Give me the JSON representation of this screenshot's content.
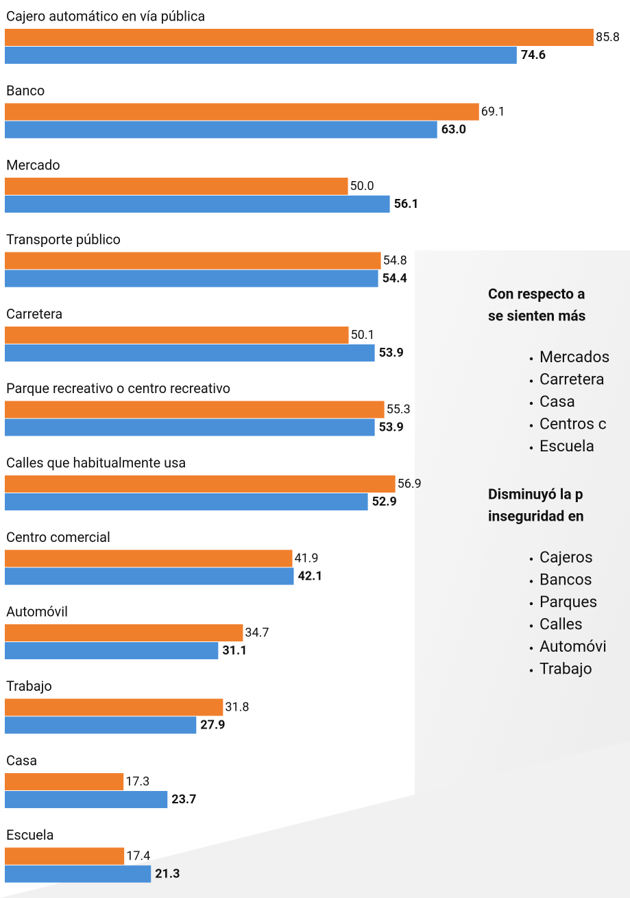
{
  "chart_data": {
    "type": "hbar",
    "categories": [
      "Cajero automático en vía pública",
      "Banco",
      "Mercado",
      "Transporte público",
      "Carretera",
      "Parque recreativo o centro recreativo",
      "Calles que habitualmente usa",
      "Centro comercial",
      "Automóvil",
      "Trabajo",
      "Casa",
      "Escuela"
    ],
    "series": [
      {
        "color": "#f07f2c",
        "values": [
          85.8,
          69.1,
          50.0,
          54.8,
          50.1,
          55.3,
          56.9,
          41.9,
          34.7,
          31.8,
          17.3,
          17.4
        ],
        "value_labels": [
          "85.8",
          "69.1",
          "50.0",
          "54.8",
          "50.1",
          "55.3",
          "56.9",
          "41.9",
          "34.7",
          "31.8",
          "17.3",
          "17.4"
        ]
      },
      {
        "color": "#4a90d9",
        "values": [
          74.6,
          63.0,
          56.1,
          54.4,
          53.9,
          53.9,
          52.9,
          42.1,
          31.1,
          27.9,
          23.7,
          21.3
        ],
        "value_labels": [
          "74.6",
          "63.0",
          "56.1",
          "54.4",
          "53.9",
          "53.9",
          "52.9",
          "42.1",
          "31.1",
          "27.9",
          "23.7",
          "21.3"
        ]
      }
    ],
    "xlim": [
      0,
      90
    ]
  },
  "panel": {
    "sections": [
      {
        "heading": [
          "Con respecto a",
          "se sienten más"
        ],
        "items": [
          "Mercados",
          "Carretera",
          "Casa",
          "Centros c",
          "Escuela"
        ]
      },
      {
        "heading": [
          "Disminuyó la p",
          "inseguridad en"
        ],
        "items": [
          "Cajeros",
          "Bancos",
          "Parques",
          "Calles",
          "Automóvi",
          "Trabajo"
        ]
      }
    ]
  }
}
